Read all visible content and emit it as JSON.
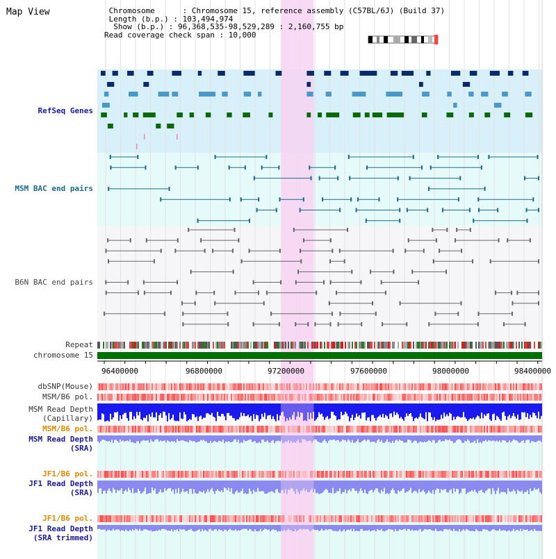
{
  "title": "Map View",
  "info": {
    "line1": " Chromosome      : Chromosome 15, reference assembly (C57BL/6J) (Build 37)",
    "line2": " Length (b.p.) : 103,494,974",
    "line3": "  Show (b.p.) : 96,368,535-98,529,289 : 2,160,755 bp",
    "line4": "Read coverage check span : 10,000"
  },
  "tracks": {
    "refseq": "RefSeq Genes",
    "msm_bac": "MSM BAC end pairs",
    "b6n_bac": "B6N BAC end pairs",
    "repeat": "Repeat",
    "chromosome": "chromosome 15",
    "dbsnp": "dbSNP(Mouse)",
    "msm_b6_pol": "MSM/B6 pol.",
    "msm_depth_cap_1": "MSM Read Depth",
    "msm_depth_cap_2": "(Capillary)",
    "msm_b6_pol_2": "MSM/B6 pol.",
    "msm_depth_sra_1": "MSM Read Depth",
    "msm_depth_sra_2": "(SRA)",
    "jf1_b6_pol": "JF1/B6 pol.",
    "jf1_depth_sra_1": "JF1 Read Depth",
    "jf1_depth_sra_2": "(SRA)",
    "jf1_b6_pol_2": "JF1/B6 pol.",
    "jf1_depth_trim_1": "JF1 Read Depth",
    "jf1_depth_trim_2": "(SRA trimmed)"
  },
  "axis": {
    "ticks": [
      "96400000",
      "96800000",
      "97200000",
      "97600000",
      "98000000",
      "98400000"
    ],
    "range": [
      96368535,
      98529289
    ]
  },
  "highlight_range": [
    97260000,
    97420000
  ],
  "colors": {
    "refseq_bg": "#d8f0fa",
    "bac_bg": "#e6fafa",
    "b6n_bg": "#f6f6f8",
    "highlight": "#f8d4f2",
    "refseq_navy": "#0a2a6a",
    "refseq_blue": "#4a98c8",
    "refseq_green": "#0a6a0a",
    "msm_line": "#1a6a8a",
    "b6n_line": "#666666",
    "chrom_green": "#007000",
    "depth_blue": "#1a1aee",
    "depth_light": "#8a8af0"
  }
}
